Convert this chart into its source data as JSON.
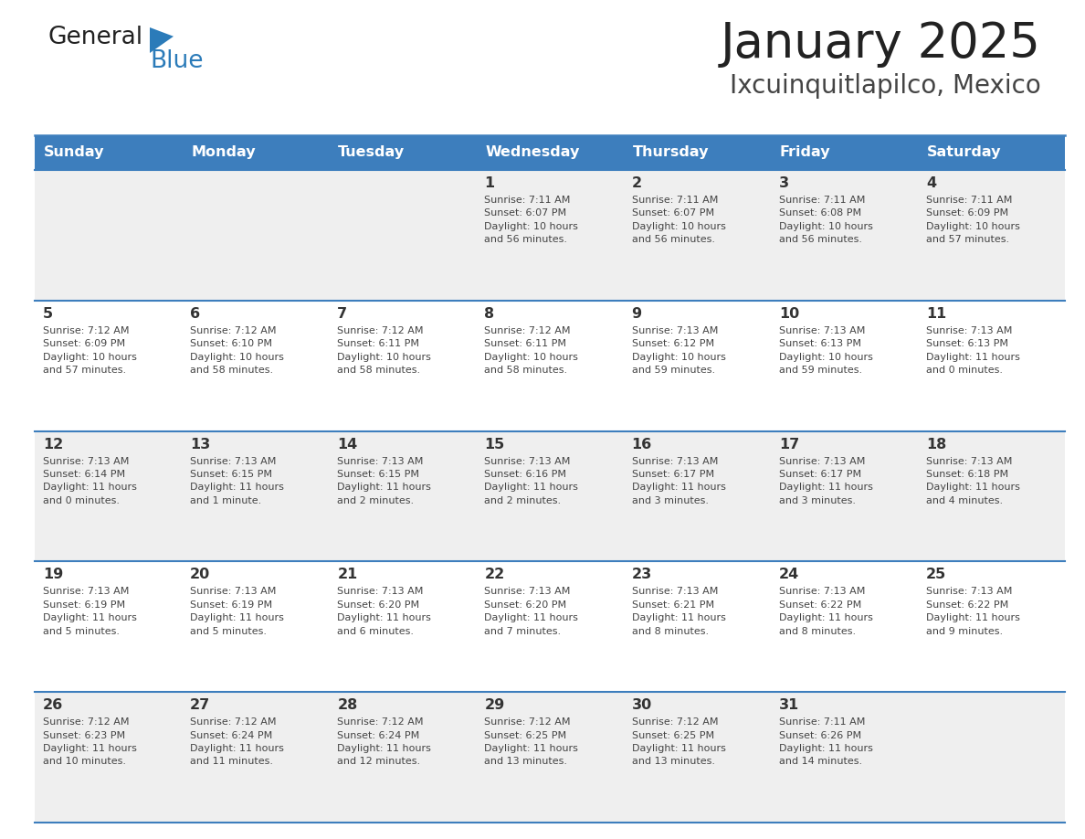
{
  "title": "January 2025",
  "subtitle": "Ixcuinquitlapilco, Mexico",
  "days_of_week": [
    "Sunday",
    "Monday",
    "Tuesday",
    "Wednesday",
    "Thursday",
    "Friday",
    "Saturday"
  ],
  "header_bg": "#3D7EBD",
  "header_text": "#FFFFFF",
  "row_bg_even": "#EFEFEF",
  "row_bg_odd": "#FFFFFF",
  "separator_color": "#3D7EBD",
  "day_num_color": "#333333",
  "cell_text_color": "#444444",
  "title_color": "#222222",
  "subtitle_color": "#444444",
  "logo_general_color": "#222222",
  "logo_blue_color": "#2B7BB9",
  "calendar": [
    [
      {
        "day": "",
        "info": ""
      },
      {
        "day": "",
        "info": ""
      },
      {
        "day": "",
        "info": ""
      },
      {
        "day": "1",
        "info": "Sunrise: 7:11 AM\nSunset: 6:07 PM\nDaylight: 10 hours\nand 56 minutes."
      },
      {
        "day": "2",
        "info": "Sunrise: 7:11 AM\nSunset: 6:07 PM\nDaylight: 10 hours\nand 56 minutes."
      },
      {
        "day": "3",
        "info": "Sunrise: 7:11 AM\nSunset: 6:08 PM\nDaylight: 10 hours\nand 56 minutes."
      },
      {
        "day": "4",
        "info": "Sunrise: 7:11 AM\nSunset: 6:09 PM\nDaylight: 10 hours\nand 57 minutes."
      }
    ],
    [
      {
        "day": "5",
        "info": "Sunrise: 7:12 AM\nSunset: 6:09 PM\nDaylight: 10 hours\nand 57 minutes."
      },
      {
        "day": "6",
        "info": "Sunrise: 7:12 AM\nSunset: 6:10 PM\nDaylight: 10 hours\nand 58 minutes."
      },
      {
        "day": "7",
        "info": "Sunrise: 7:12 AM\nSunset: 6:11 PM\nDaylight: 10 hours\nand 58 minutes."
      },
      {
        "day": "8",
        "info": "Sunrise: 7:12 AM\nSunset: 6:11 PM\nDaylight: 10 hours\nand 58 minutes."
      },
      {
        "day": "9",
        "info": "Sunrise: 7:13 AM\nSunset: 6:12 PM\nDaylight: 10 hours\nand 59 minutes."
      },
      {
        "day": "10",
        "info": "Sunrise: 7:13 AM\nSunset: 6:13 PM\nDaylight: 10 hours\nand 59 minutes."
      },
      {
        "day": "11",
        "info": "Sunrise: 7:13 AM\nSunset: 6:13 PM\nDaylight: 11 hours\nand 0 minutes."
      }
    ],
    [
      {
        "day": "12",
        "info": "Sunrise: 7:13 AM\nSunset: 6:14 PM\nDaylight: 11 hours\nand 0 minutes."
      },
      {
        "day": "13",
        "info": "Sunrise: 7:13 AM\nSunset: 6:15 PM\nDaylight: 11 hours\nand 1 minute."
      },
      {
        "day": "14",
        "info": "Sunrise: 7:13 AM\nSunset: 6:15 PM\nDaylight: 11 hours\nand 2 minutes."
      },
      {
        "day": "15",
        "info": "Sunrise: 7:13 AM\nSunset: 6:16 PM\nDaylight: 11 hours\nand 2 minutes."
      },
      {
        "day": "16",
        "info": "Sunrise: 7:13 AM\nSunset: 6:17 PM\nDaylight: 11 hours\nand 3 minutes."
      },
      {
        "day": "17",
        "info": "Sunrise: 7:13 AM\nSunset: 6:17 PM\nDaylight: 11 hours\nand 3 minutes."
      },
      {
        "day": "18",
        "info": "Sunrise: 7:13 AM\nSunset: 6:18 PM\nDaylight: 11 hours\nand 4 minutes."
      }
    ],
    [
      {
        "day": "19",
        "info": "Sunrise: 7:13 AM\nSunset: 6:19 PM\nDaylight: 11 hours\nand 5 minutes."
      },
      {
        "day": "20",
        "info": "Sunrise: 7:13 AM\nSunset: 6:19 PM\nDaylight: 11 hours\nand 5 minutes."
      },
      {
        "day": "21",
        "info": "Sunrise: 7:13 AM\nSunset: 6:20 PM\nDaylight: 11 hours\nand 6 minutes."
      },
      {
        "day": "22",
        "info": "Sunrise: 7:13 AM\nSunset: 6:20 PM\nDaylight: 11 hours\nand 7 minutes."
      },
      {
        "day": "23",
        "info": "Sunrise: 7:13 AM\nSunset: 6:21 PM\nDaylight: 11 hours\nand 8 minutes."
      },
      {
        "day": "24",
        "info": "Sunrise: 7:13 AM\nSunset: 6:22 PM\nDaylight: 11 hours\nand 8 minutes."
      },
      {
        "day": "25",
        "info": "Sunrise: 7:13 AM\nSunset: 6:22 PM\nDaylight: 11 hours\nand 9 minutes."
      }
    ],
    [
      {
        "day": "26",
        "info": "Sunrise: 7:12 AM\nSunset: 6:23 PM\nDaylight: 11 hours\nand 10 minutes."
      },
      {
        "day": "27",
        "info": "Sunrise: 7:12 AM\nSunset: 6:24 PM\nDaylight: 11 hours\nand 11 minutes."
      },
      {
        "day": "28",
        "info": "Sunrise: 7:12 AM\nSunset: 6:24 PM\nDaylight: 11 hours\nand 12 minutes."
      },
      {
        "day": "29",
        "info": "Sunrise: 7:12 AM\nSunset: 6:25 PM\nDaylight: 11 hours\nand 13 minutes."
      },
      {
        "day": "30",
        "info": "Sunrise: 7:12 AM\nSunset: 6:25 PM\nDaylight: 11 hours\nand 13 minutes."
      },
      {
        "day": "31",
        "info": "Sunrise: 7:11 AM\nSunset: 6:26 PM\nDaylight: 11 hours\nand 14 minutes."
      },
      {
        "day": "",
        "info": ""
      }
    ]
  ]
}
